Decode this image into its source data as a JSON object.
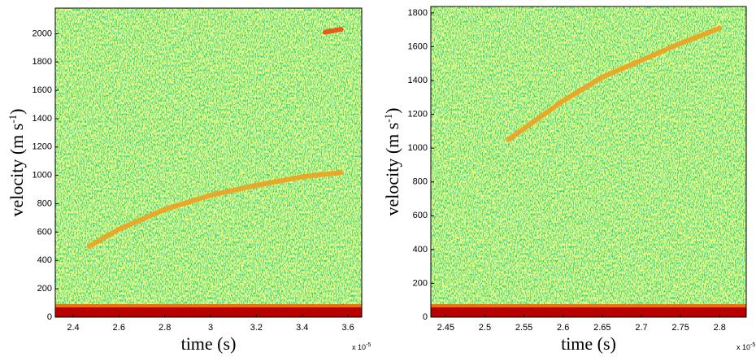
{
  "chart_data": [
    {
      "type": "spectrogram",
      "xlabel": "time (s)",
      "ylabel": "velocity (m s",
      "ylabel_sup": "-1",
      "ylabel_end": ")",
      "x_exponent_label": "x 10",
      "x_exponent": "-5",
      "xlim": [
        2.322,
        3.66
      ],
      "ylim": [
        0,
        2180
      ],
      "xticks": [
        2.4,
        2.6,
        2.8,
        3,
        3.2,
        3.4,
        3.6
      ],
      "yticks": [
        0,
        200,
        400,
        600,
        800,
        1000,
        1200,
        1400,
        1600,
        1800,
        2000
      ],
      "series": [
        {
          "color": "#f0a020",
          "x": [
            2.47,
            2.6,
            2.8,
            3.0,
            3.2,
            3.4,
            3.57
          ],
          "values": [
            500,
            620,
            760,
            860,
            930,
            990,
            1020
          ]
        },
        {
          "color": "#e85010",
          "x": [
            3.5,
            3.57
          ],
          "values": [
            2010,
            2030
          ]
        }
      ]
    },
    {
      "type": "spectrogram",
      "xlabel": "time (s)",
      "ylabel": "velocity (m s",
      "ylabel_sup": "-1",
      "ylabel_end": ")",
      "x_exponent_label": "x 10",
      "x_exponent": "-5",
      "xlim": [
        2.431,
        2.834
      ],
      "ylim": [
        0,
        1838
      ],
      "xticks": [
        2.45,
        2.5,
        2.55,
        2.6,
        2.65,
        2.7,
        2.75,
        2.8
      ],
      "yticks": [
        0,
        200,
        400,
        600,
        800,
        1000,
        1200,
        1400,
        1600,
        1800
      ],
      "series": [
        {
          "color": "#f0a020",
          "x": [
            2.53,
            2.6,
            2.65,
            2.7,
            2.75,
            2.8
          ],
          "values": [
            1050,
            1280,
            1420,
            1520,
            1620,
            1710
          ]
        }
      ]
    }
  ]
}
